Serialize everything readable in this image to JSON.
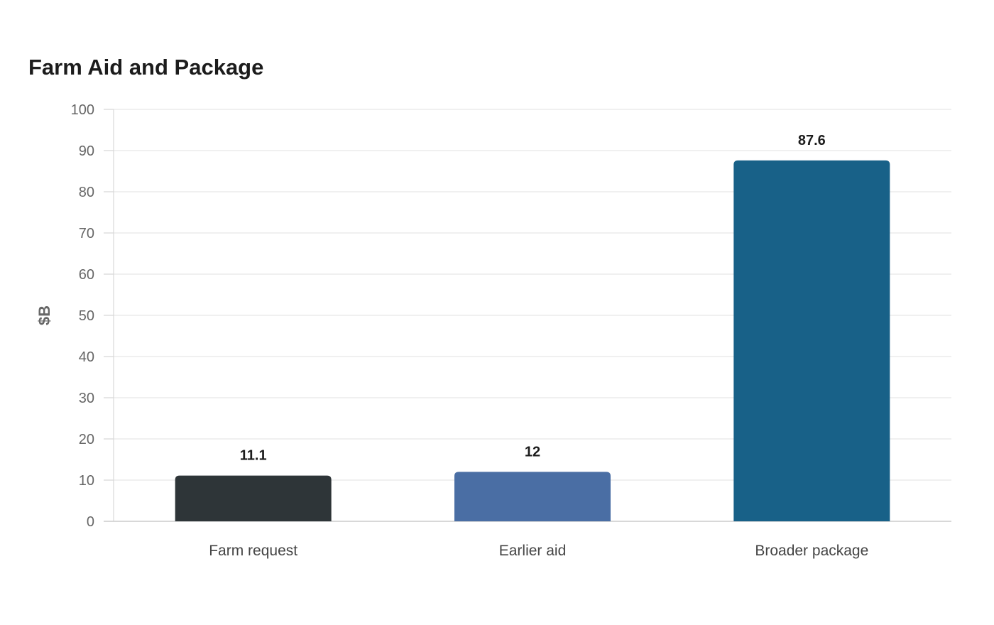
{
  "chart_data": {
    "type": "bar",
    "title": "Farm Aid and Package",
    "xlabel": "",
    "ylabel": "$B",
    "categories": [
      "Farm request",
      "Earlier aid",
      "Broader package"
    ],
    "values": [
      11.1,
      12,
      87.6
    ],
    "value_labels": [
      "11.1",
      "12",
      "87.6"
    ],
    "colors": [
      "#2e3538",
      "#4a6ea4",
      "#186188"
    ],
    "ylim": [
      0,
      100
    ],
    "yticks": [
      0,
      10,
      20,
      30,
      40,
      50,
      60,
      70,
      80,
      90,
      100
    ],
    "grid": true,
    "legend": "none"
  }
}
